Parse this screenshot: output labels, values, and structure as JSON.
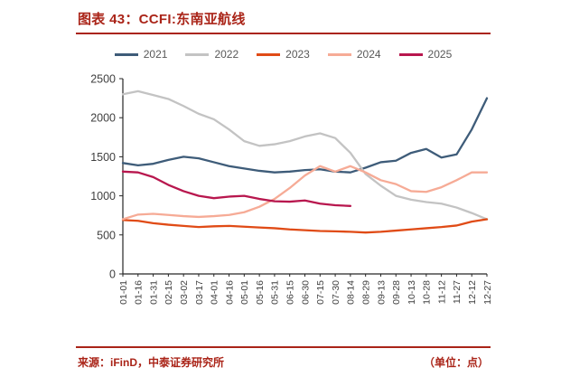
{
  "header": {
    "title": "图表 43：CCFI:东南亚航线"
  },
  "footer": {
    "source": "来源：iFinD，中泰证券研究所",
    "unit": "（单位：点）"
  },
  "colors": {
    "accent_red": "#aa2418",
    "axis": "#262626",
    "tick_label": "#404040",
    "legend_label": "#595959"
  },
  "chart_data": {
    "type": "line",
    "title": "CCFI:东南亚航线",
    "unit": "点",
    "grid": false,
    "legend_position": "top",
    "ylim": [
      0,
      2500
    ],
    "ytick_step": 500,
    "yticks": [
      0,
      500,
      1000,
      1500,
      2000,
      2500
    ],
    "categories": [
      "01-01",
      "01-16",
      "01-31",
      "02-15",
      "03-02",
      "03-17",
      "04-01",
      "04-16",
      "05-01",
      "05-16",
      "05-31",
      "06-15",
      "06-30",
      "07-15",
      "07-30",
      "08-14",
      "08-29",
      "09-13",
      "09-28",
      "10-13",
      "10-28",
      "11-12",
      "11-27",
      "12-12",
      "12-27"
    ],
    "series": [
      {
        "name": "2021",
        "color": "#3e5c79",
        "values": [
          1420,
          1390,
          1410,
          1460,
          1500,
          1480,
          1430,
          1380,
          1350,
          1320,
          1300,
          1310,
          1330,
          1340,
          1310,
          1300,
          1360,
          1430,
          1450,
          1550,
          1600,
          1490,
          1530,
          1850,
          2250
        ]
      },
      {
        "name": "2022",
        "color": "#c3c3c3",
        "values": [
          2300,
          2340,
          2290,
          2240,
          2150,
          2050,
          1980,
          1850,
          1700,
          1640,
          1660,
          1700,
          1760,
          1800,
          1740,
          1550,
          1280,
          1130,
          1000,
          950,
          920,
          900,
          850,
          780,
          700
        ]
      },
      {
        "name": "2023",
        "color": "#e04b16",
        "values": [
          690,
          680,
          650,
          630,
          615,
          600,
          610,
          615,
          605,
          595,
          585,
          570,
          560,
          550,
          545,
          540,
          530,
          540,
          555,
          570,
          585,
          600,
          620,
          670,
          700
        ]
      },
      {
        "name": "2024",
        "color": "#f6ab96",
        "values": [
          700,
          760,
          770,
          755,
          740,
          730,
          740,
          755,
          790,
          860,
          960,
          1100,
          1260,
          1380,
          1310,
          1380,
          1300,
          1200,
          1150,
          1060,
          1050,
          1110,
          1200,
          1300,
          1300
        ]
      },
      {
        "name": "2025",
        "color": "#b8174e",
        "values": [
          1310,
          1300,
          1240,
          1140,
          1060,
          1000,
          970,
          990,
          1000,
          960,
          930,
          925,
          940,
          900,
          880,
          870
        ]
      }
    ]
  }
}
